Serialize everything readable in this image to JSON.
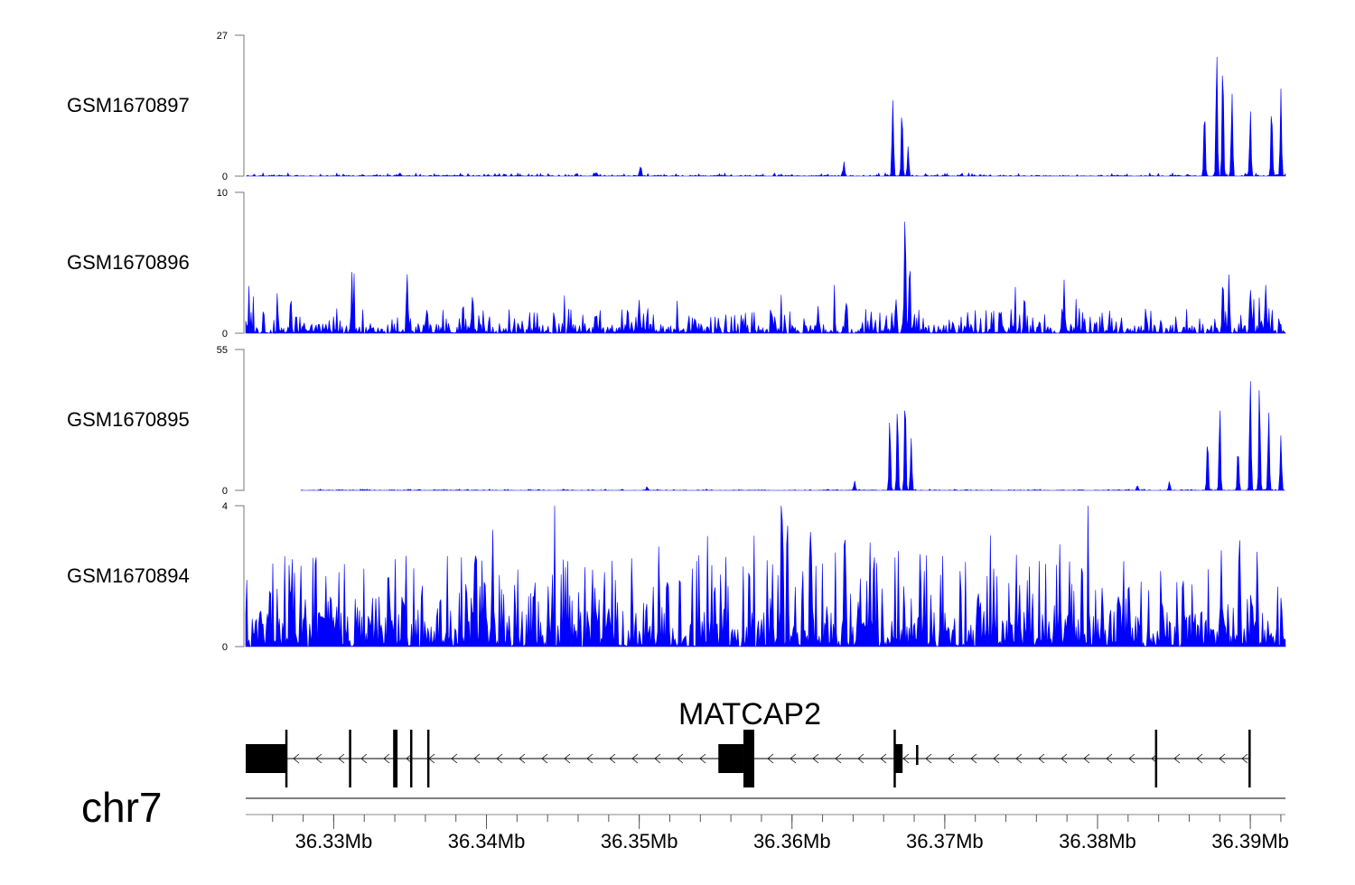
{
  "chart_data": {
    "type": "area",
    "chromosome": "chr7",
    "xlim_mb": [
      36.32424,
      36.3923
    ],
    "x_ticks_mb": [
      36.33,
      36.34,
      36.35,
      36.36,
      36.37,
      36.38,
      36.39
    ],
    "x_tick_labels": [
      "36.33Mb",
      "36.34Mb",
      "36.35Mb",
      "36.36Mb",
      "36.37Mb",
      "36.38Mb",
      "36.39Mb"
    ],
    "minor_tick_step_kb": 2,
    "fill_color": "#0000FF",
    "tracks": [
      {
        "name": "GSM1670897",
        "ylim": [
          0,
          27
        ],
        "y_tick_labels": [
          "0",
          "27"
        ],
        "noise": 0.6,
        "data_start_mb": 36.32424,
        "peaks": [
          [
            36.3501,
            2.2
          ],
          [
            36.3634,
            3
          ],
          [
            36.3666,
            17
          ],
          [
            36.3672,
            16
          ],
          [
            36.3676,
            6
          ],
          [
            36.3878,
            26
          ],
          [
            36.3882,
            27
          ],
          [
            36.387,
            16
          ],
          [
            36.3888,
            17
          ],
          [
            36.39,
            14
          ],
          [
            36.3914,
            15
          ],
          [
            36.392,
            17
          ]
        ]
      },
      {
        "name": "GSM1670896",
        "ylim": [
          0,
          10
        ],
        "y_tick_labels": [
          "0",
          "10"
        ],
        "noise": 1.8,
        "data_start_mb": 36.32424,
        "peaks": [
          [
            36.3272,
            2.4
          ],
          [
            36.3312,
            3.3
          ],
          [
            36.3348,
            3
          ],
          [
            36.3391,
            3.3
          ],
          [
            36.35,
            2.8
          ],
          [
            36.3668,
            3
          ],
          [
            36.3674,
            10
          ],
          [
            36.3677,
            5
          ],
          [
            36.3778,
            2.6
          ],
          [
            36.3882,
            4.8
          ],
          [
            36.3886,
            4.8
          ],
          [
            36.39,
            3.8
          ],
          [
            36.391,
            3.5
          ]
        ]
      },
      {
        "name": "GSM1670895",
        "ylim": [
          0,
          55
        ],
        "y_tick_labels": [
          "0",
          "55"
        ],
        "noise": 0.5,
        "data_start_mb": 36.32785,
        "peaks": [
          [
            36.3505,
            1.5
          ],
          [
            36.3641,
            4
          ],
          [
            36.3664,
            30
          ],
          [
            36.3669,
            35
          ],
          [
            36.3674,
            45
          ],
          [
            36.3678,
            25
          ],
          [
            36.3826,
            2.5
          ],
          [
            36.3847,
            4
          ],
          [
            36.3872,
            25
          ],
          [
            36.388,
            35
          ],
          [
            36.3892,
            20
          ],
          [
            36.39,
            55
          ],
          [
            36.3906,
            45
          ],
          [
            36.3912,
            37
          ],
          [
            36.392,
            25
          ]
        ]
      },
      {
        "name": "GSM1670894",
        "ylim": [
          0,
          4
        ],
        "y_tick_labels": [
          "0",
          "4"
        ],
        "noise": 2.6,
        "data_start_mb": 36.32424,
        "peaks": [
          [
            36.3593,
            4
          ],
          [
            36.3597,
            3.2
          ],
          [
            36.3635,
            3.4
          ],
          [
            36.3651,
            3.4
          ],
          [
            36.3684,
            3.2
          ],
          [
            36.3893,
            3.4
          ],
          [
            36.3881,
            3.4
          ]
        ]
      }
    ],
    "gene": {
      "name": "MATCAP2",
      "strand": "-",
      "exons_mb": [
        [
          36.32424,
          36.32689,
          "utr"
        ],
        [
          36.32683,
          36.32695,
          "cds"
        ],
        [
          36.331,
          36.33112,
          "cds"
        ],
        [
          36.33389,
          36.33418,
          "cds"
        ],
        [
          36.335,
          36.33512,
          "cds"
        ],
        [
          36.33612,
          36.33624,
          "cds"
        ],
        [
          36.35518,
          36.35682,
          "utr"
        ],
        [
          36.35682,
          36.35753,
          "cds"
        ],
        [
          36.36665,
          36.36677,
          "cds"
        ],
        [
          36.36677,
          36.36724,
          "utr"
        ],
        [
          36.36812,
          36.36824,
          "small"
        ],
        [
          36.38376,
          36.38388,
          "cds"
        ],
        [
          36.38988,
          36.39,
          "cds"
        ]
      ]
    }
  }
}
